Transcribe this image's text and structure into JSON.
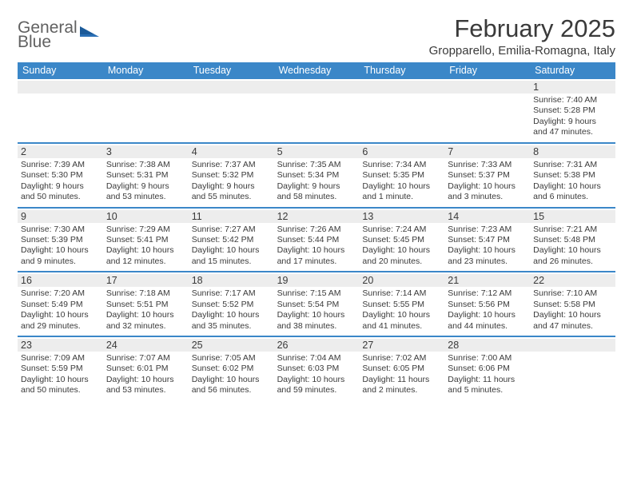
{
  "logo": {
    "line1": "General",
    "line2": "Blue"
  },
  "title": "February 2025",
  "location": "Gropparello, Emilia-Romagna, Italy",
  "colors": {
    "header_bg": "#3b87c8",
    "header_text": "#ffffff",
    "daynum_bg": "#ededed",
    "text": "#3a3a3a",
    "logo_gray": "#616161",
    "logo_blue": "#2a6fb5",
    "page_bg": "#ffffff"
  },
  "day_labels": [
    "Sunday",
    "Monday",
    "Tuesday",
    "Wednesday",
    "Thursday",
    "Friday",
    "Saturday"
  ],
  "weeks": [
    [
      {
        "n": "",
        "sunrise": "",
        "sunset": "",
        "daylight": ""
      },
      {
        "n": "",
        "sunrise": "",
        "sunset": "",
        "daylight": ""
      },
      {
        "n": "",
        "sunrise": "",
        "sunset": "",
        "daylight": ""
      },
      {
        "n": "",
        "sunrise": "",
        "sunset": "",
        "daylight": ""
      },
      {
        "n": "",
        "sunrise": "",
        "sunset": "",
        "daylight": ""
      },
      {
        "n": "",
        "sunrise": "",
        "sunset": "",
        "daylight": ""
      },
      {
        "n": "1",
        "sunrise": "Sunrise: 7:40 AM",
        "sunset": "Sunset: 5:28 PM",
        "daylight": "Daylight: 9 hours and 47 minutes."
      }
    ],
    [
      {
        "n": "2",
        "sunrise": "Sunrise: 7:39 AM",
        "sunset": "Sunset: 5:30 PM",
        "daylight": "Daylight: 9 hours and 50 minutes."
      },
      {
        "n": "3",
        "sunrise": "Sunrise: 7:38 AM",
        "sunset": "Sunset: 5:31 PM",
        "daylight": "Daylight: 9 hours and 53 minutes."
      },
      {
        "n": "4",
        "sunrise": "Sunrise: 7:37 AM",
        "sunset": "Sunset: 5:32 PM",
        "daylight": "Daylight: 9 hours and 55 minutes."
      },
      {
        "n": "5",
        "sunrise": "Sunrise: 7:35 AM",
        "sunset": "Sunset: 5:34 PM",
        "daylight": "Daylight: 9 hours and 58 minutes."
      },
      {
        "n": "6",
        "sunrise": "Sunrise: 7:34 AM",
        "sunset": "Sunset: 5:35 PM",
        "daylight": "Daylight: 10 hours and 1 minute."
      },
      {
        "n": "7",
        "sunrise": "Sunrise: 7:33 AM",
        "sunset": "Sunset: 5:37 PM",
        "daylight": "Daylight: 10 hours and 3 minutes."
      },
      {
        "n": "8",
        "sunrise": "Sunrise: 7:31 AM",
        "sunset": "Sunset: 5:38 PM",
        "daylight": "Daylight: 10 hours and 6 minutes."
      }
    ],
    [
      {
        "n": "9",
        "sunrise": "Sunrise: 7:30 AM",
        "sunset": "Sunset: 5:39 PM",
        "daylight": "Daylight: 10 hours and 9 minutes."
      },
      {
        "n": "10",
        "sunrise": "Sunrise: 7:29 AM",
        "sunset": "Sunset: 5:41 PM",
        "daylight": "Daylight: 10 hours and 12 minutes."
      },
      {
        "n": "11",
        "sunrise": "Sunrise: 7:27 AM",
        "sunset": "Sunset: 5:42 PM",
        "daylight": "Daylight: 10 hours and 15 minutes."
      },
      {
        "n": "12",
        "sunrise": "Sunrise: 7:26 AM",
        "sunset": "Sunset: 5:44 PM",
        "daylight": "Daylight: 10 hours and 17 minutes."
      },
      {
        "n": "13",
        "sunrise": "Sunrise: 7:24 AM",
        "sunset": "Sunset: 5:45 PM",
        "daylight": "Daylight: 10 hours and 20 minutes."
      },
      {
        "n": "14",
        "sunrise": "Sunrise: 7:23 AM",
        "sunset": "Sunset: 5:47 PM",
        "daylight": "Daylight: 10 hours and 23 minutes."
      },
      {
        "n": "15",
        "sunrise": "Sunrise: 7:21 AM",
        "sunset": "Sunset: 5:48 PM",
        "daylight": "Daylight: 10 hours and 26 minutes."
      }
    ],
    [
      {
        "n": "16",
        "sunrise": "Sunrise: 7:20 AM",
        "sunset": "Sunset: 5:49 PM",
        "daylight": "Daylight: 10 hours and 29 minutes."
      },
      {
        "n": "17",
        "sunrise": "Sunrise: 7:18 AM",
        "sunset": "Sunset: 5:51 PM",
        "daylight": "Daylight: 10 hours and 32 minutes."
      },
      {
        "n": "18",
        "sunrise": "Sunrise: 7:17 AM",
        "sunset": "Sunset: 5:52 PM",
        "daylight": "Daylight: 10 hours and 35 minutes."
      },
      {
        "n": "19",
        "sunrise": "Sunrise: 7:15 AM",
        "sunset": "Sunset: 5:54 PM",
        "daylight": "Daylight: 10 hours and 38 minutes."
      },
      {
        "n": "20",
        "sunrise": "Sunrise: 7:14 AM",
        "sunset": "Sunset: 5:55 PM",
        "daylight": "Daylight: 10 hours and 41 minutes."
      },
      {
        "n": "21",
        "sunrise": "Sunrise: 7:12 AM",
        "sunset": "Sunset: 5:56 PM",
        "daylight": "Daylight: 10 hours and 44 minutes."
      },
      {
        "n": "22",
        "sunrise": "Sunrise: 7:10 AM",
        "sunset": "Sunset: 5:58 PM",
        "daylight": "Daylight: 10 hours and 47 minutes."
      }
    ],
    [
      {
        "n": "23",
        "sunrise": "Sunrise: 7:09 AM",
        "sunset": "Sunset: 5:59 PM",
        "daylight": "Daylight: 10 hours and 50 minutes."
      },
      {
        "n": "24",
        "sunrise": "Sunrise: 7:07 AM",
        "sunset": "Sunset: 6:01 PM",
        "daylight": "Daylight: 10 hours and 53 minutes."
      },
      {
        "n": "25",
        "sunrise": "Sunrise: 7:05 AM",
        "sunset": "Sunset: 6:02 PM",
        "daylight": "Daylight: 10 hours and 56 minutes."
      },
      {
        "n": "26",
        "sunrise": "Sunrise: 7:04 AM",
        "sunset": "Sunset: 6:03 PM",
        "daylight": "Daylight: 10 hours and 59 minutes."
      },
      {
        "n": "27",
        "sunrise": "Sunrise: 7:02 AM",
        "sunset": "Sunset: 6:05 PM",
        "daylight": "Daylight: 11 hours and 2 minutes."
      },
      {
        "n": "28",
        "sunrise": "Sunrise: 7:00 AM",
        "sunset": "Sunset: 6:06 PM",
        "daylight": "Daylight: 11 hours and 5 minutes."
      },
      {
        "n": "",
        "sunrise": "",
        "sunset": "",
        "daylight": ""
      }
    ]
  ]
}
